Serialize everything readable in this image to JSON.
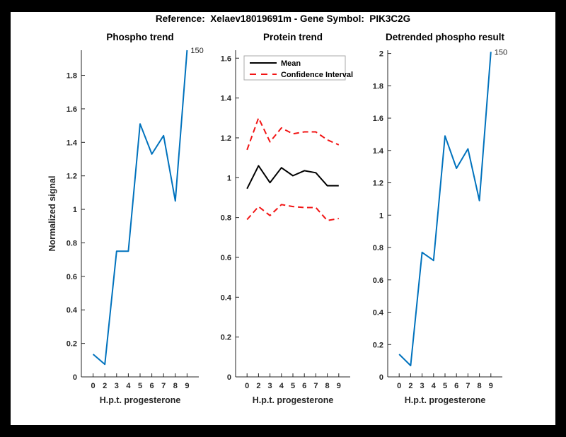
{
  "figure": {
    "title": "Reference:  Xelaev18019691m - Gene Symbol:  PIK3C2G",
    "background_color": "#000000",
    "canvas_color": "#ffffff",
    "axis_color": "#262626"
  },
  "chart_data": [
    {
      "id": "phospho-trend",
      "type": "line",
      "title": "Phospho trend",
      "xlabel": "H.p.t. progesterone",
      "ylabel": "Normalized signal",
      "x_tick_labels": [
        "0",
        "2",
        "3",
        "4",
        "5",
        "6",
        "7",
        "8",
        "9"
      ],
      "ylim": [
        0,
        1.95
      ],
      "ytick_interval": 0.2,
      "grid": false,
      "legend": null,
      "series": [
        {
          "name": "Phospho signal",
          "color": "#0072BD",
          "dash": false,
          "values": [
            0.135,
            0.075,
            0.75,
            0.75,
            1.51,
            1.33,
            1.44,
            1.05,
            1.95
          ]
        }
      ],
      "point_label": {
        "text": "150",
        "series": 0,
        "point": 8
      }
    },
    {
      "id": "protein-trend",
      "type": "line",
      "title": "Protein trend",
      "xlabel": "H.p.t. progesterone",
      "ylabel": "",
      "x_tick_labels": [
        "0",
        "2",
        "3",
        "4",
        "5",
        "6",
        "7",
        "8",
        "9"
      ],
      "ylim": [
        0,
        1.64
      ],
      "ytick_interval": 0.2,
      "grid": false,
      "legend": {
        "position": "upper-left-inside",
        "entries": [
          {
            "label": "Mean",
            "color": "#000000",
            "dash": false
          },
          {
            "label": "Confidence Interval",
            "color": "#F21414",
            "dash": true
          }
        ]
      },
      "series": [
        {
          "name": "Mean",
          "color": "#000000",
          "dash": false,
          "values": [
            0.945,
            1.06,
            0.975,
            1.05,
            1.01,
            1.035,
            1.025,
            0.96,
            0.96
          ]
        },
        {
          "name": "Confidence Interval upper",
          "color": "#F21414",
          "dash": true,
          "values": [
            1.14,
            1.3,
            1.18,
            1.25,
            1.22,
            1.23,
            1.23,
            1.19,
            1.165
          ]
        },
        {
          "name": "Confidence Interval lower",
          "color": "#F21414",
          "dash": true,
          "values": [
            0.79,
            0.855,
            0.81,
            0.865,
            0.855,
            0.85,
            0.85,
            0.785,
            0.795
          ]
        }
      ],
      "point_label": null
    },
    {
      "id": "detrended-phospho-result",
      "type": "line",
      "title": "Detrended phospho result",
      "xlabel": "H.p.t. progesterone",
      "ylabel": "",
      "x_tick_labels": [
        "0",
        "2",
        "3",
        "4",
        "5",
        "6",
        "7",
        "8",
        "9"
      ],
      "ylim": [
        0,
        2.02
      ],
      "ytick_interval": 0.2,
      "grid": false,
      "legend": null,
      "series": [
        {
          "name": "Detrended phospho signal",
          "color": "#0072BD",
          "dash": false,
          "values": [
            0.14,
            0.07,
            0.77,
            0.72,
            1.49,
            1.29,
            1.41,
            1.09,
            2.01
          ]
        }
      ],
      "point_label": {
        "text": "150",
        "series": 0,
        "point": 8
      }
    }
  ]
}
